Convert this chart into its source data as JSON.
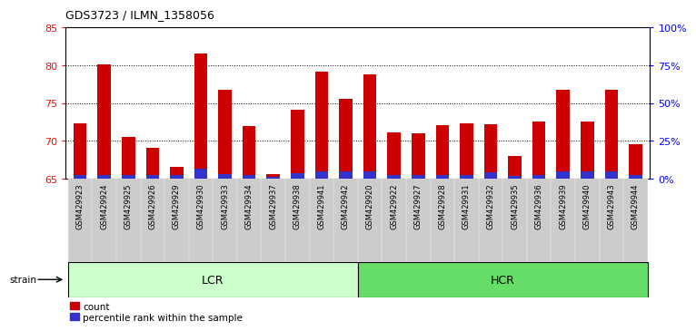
{
  "title": "GDS3723 / ILMN_1358056",
  "samples": [
    "GSM429923",
    "GSM429924",
    "GSM429925",
    "GSM429926",
    "GSM429929",
    "GSM429930",
    "GSM429933",
    "GSM429934",
    "GSM429937",
    "GSM429938",
    "GSM429941",
    "GSM429942",
    "GSM429920",
    "GSM429922",
    "GSM429927",
    "GSM429928",
    "GSM429931",
    "GSM429932",
    "GSM429935",
    "GSM429936",
    "GSM429939",
    "GSM429940",
    "GSM429943",
    "GSM429944"
  ],
  "lcr_count": 12,
  "hcr_count": 12,
  "count_values": [
    72.3,
    80.1,
    70.5,
    69.0,
    66.5,
    81.5,
    76.8,
    71.9,
    65.6,
    74.1,
    79.1,
    75.5,
    78.8,
    71.1,
    71.0,
    72.0,
    72.3,
    72.2,
    68.0,
    72.5,
    76.8,
    72.5,
    76.7,
    69.5
  ],
  "percentile_values": [
    2.0,
    2.0,
    2.0,
    2.0,
    2.0,
    6.5,
    3.0,
    2.0,
    1.0,
    3.5,
    4.5,
    4.5,
    4.5,
    2.0,
    2.0,
    2.0,
    2.0,
    4.0,
    1.5,
    2.0,
    4.5,
    4.5,
    4.5,
    2.0
  ],
  "ylim_left": [
    65,
    85
  ],
  "ylim_right": [
    0,
    100
  ],
  "yticks_left": [
    65,
    70,
    75,
    80,
    85
  ],
  "yticks_right": [
    0,
    25,
    50,
    75,
    100
  ],
  "ytick_right_labels": [
    "0%",
    "25%",
    "50%",
    "75%",
    "100%"
  ],
  "bar_color_count": "#cc0000",
  "bar_color_percentile": "#3333cc",
  "lcr_color": "#ccffcc",
  "hcr_color": "#66dd66",
  "tick_bg_color": "#cccccc",
  "group_label_lcr": "LCR",
  "group_label_hcr": "HCR",
  "strain_label": "strain",
  "legend_count": "count",
  "legend_percentile": "percentile rank within the sample",
  "bar_width": 0.55,
  "base_value": 65
}
